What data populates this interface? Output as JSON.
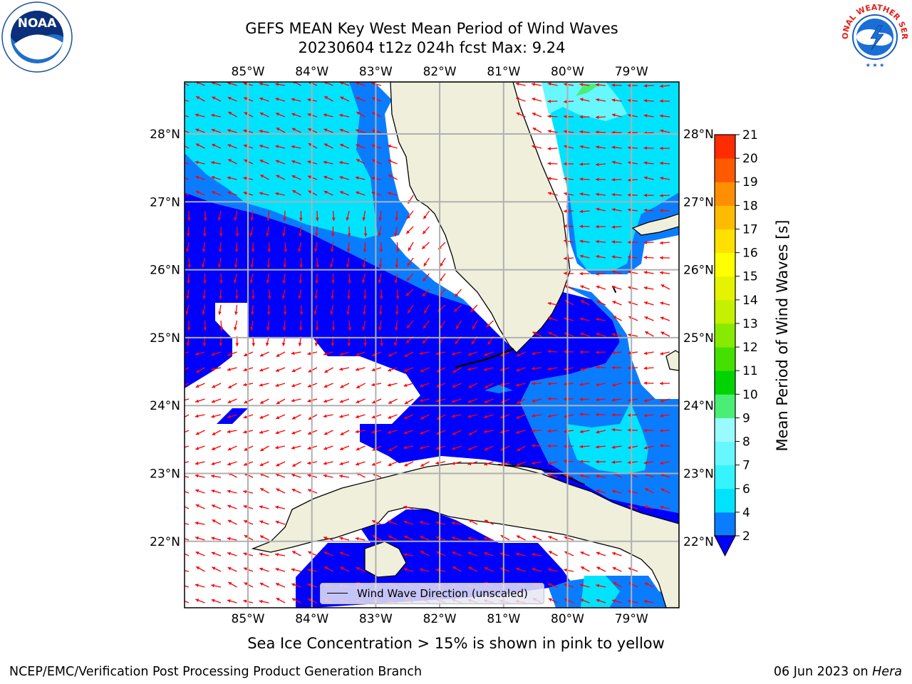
{
  "title_line1": "GEFS MEAN Key West Mean Period of Wind Waves",
  "title_line2": "20230604 t12z 024h fcst   Max: 9.24",
  "subtitle": "Sea Ice Concentration > 15% is shown in pink to yellow",
  "footer_left": "NCEP/EMC/Verification Post Processing Product Generation Branch",
  "footer_right_date": "06 Jun 2023 on",
  "footer_right_host": "Hera",
  "legend_label": "Wind Wave Direction (unscaled)",
  "logos": {
    "left": "noaa-logo",
    "right": "nws-logo",
    "noaa_text": "NOAA",
    "nws_text": "NATIONAL WEATHER SERVICE"
  },
  "map": {
    "lon_labels": [
      "85°W",
      "84°W",
      "83°W",
      "82°W",
      "81°W",
      "80°W",
      "79°W"
    ],
    "lat_labels": [
      "28°N",
      "27°N",
      "26°N",
      "25°N",
      "24°N",
      "23°N",
      "22°N"
    ],
    "land_color": "#efefdb",
    "arrow_color": "#ff0000"
  },
  "colorbar": {
    "label": "Mean Period of Wind Waves [s]",
    "ticks": [
      "2",
      "4",
      "6",
      "7",
      "8",
      "9",
      "10",
      "11",
      "12",
      "13",
      "14",
      "15",
      "16",
      "17",
      "18",
      "19",
      "20",
      "21"
    ],
    "colors": [
      "#0a7cff",
      "#00e3ff",
      "#33f4ff",
      "#66f7ff",
      "#99fbff",
      "#4aee74",
      "#00d400",
      "#43e000",
      "#88ea00",
      "#c5f000",
      "#e5f300",
      "#ffff00",
      "#ffe000",
      "#ffbb00",
      "#ff8f00",
      "#ff5a00",
      "#ff2c00",
      "#ff0000"
    ],
    "under_color": "#0000ff"
  }
}
